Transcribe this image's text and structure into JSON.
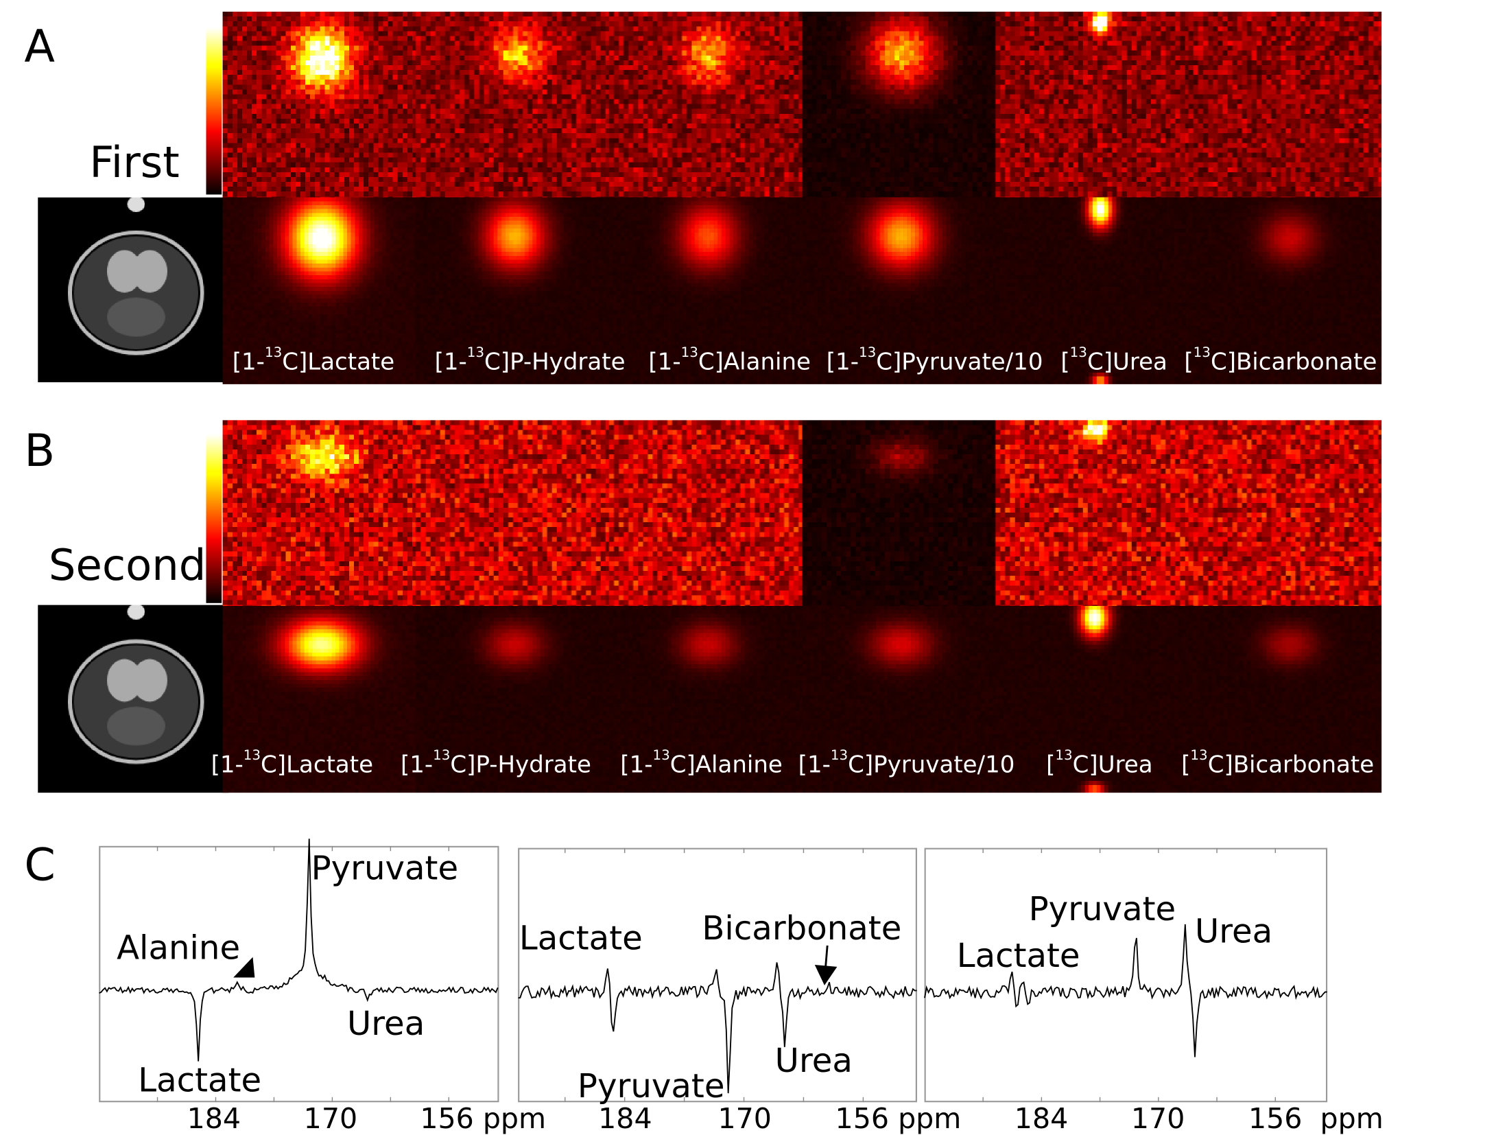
{
  "panels": {
    "A": {
      "letter": "A",
      "row_label": "First",
      "labels": [
        {
          "pre": "[1-",
          "sup": "13",
          "post": "C]Lactate"
        },
        {
          "pre": "[1-",
          "sup": "13",
          "post": "C]P-Hydrate"
        },
        {
          "pre": "[1-",
          "sup": "13",
          "post": "C]Alanine"
        },
        {
          "pre": "[1-",
          "sup": "13",
          "post": "C]Pyruvate/10"
        },
        {
          "pre": "[",
          "sup": "13",
          "post": "C]Urea"
        },
        {
          "pre": "[",
          "sup": "13",
          "post": "C]Bicarbonate"
        }
      ]
    },
    "B": {
      "letter": "B",
      "row_label": "Second",
      "labels": [
        {
          "pre": "[1-",
          "sup": "13",
          "post": "C]Lactate"
        },
        {
          "pre": "[1-",
          "sup": "13",
          "post": "C]P-Hydrate"
        },
        {
          "pre": "[1-",
          "sup": "13",
          "post": "C]Alanine"
        },
        {
          "pre": "[1-",
          "sup": "13",
          "post": "C]Pyruvate/10"
        },
        {
          "pre": "[",
          "sup": "13",
          "post": "C]Urea"
        },
        {
          "pre": "[",
          "sup": "13",
          "post": "C]Bicarbonate"
        }
      ]
    },
    "C": {
      "letter": "C"
    }
  },
  "colors": {
    "colormap": "hot",
    "line": "#000000",
    "frame": "#999999"
  },
  "chart_data": [
    {
      "type": "line",
      "title": "",
      "xlabel": "ppm",
      "xlim": [
        198,
        150
      ],
      "xticks": [
        184,
        170,
        156
      ],
      "xtick_labels": [
        "184",
        "170",
        "156 ppm"
      ],
      "peaks": [
        {
          "name": "Lactate",
          "ppm": 186.1,
          "amp": -75
        },
        {
          "name": "Alanine",
          "ppm": 181.5,
          "amp": 10
        },
        {
          "name": "Pyruvate",
          "ppm": 172.8,
          "amp": 140
        },
        {
          "name": "Urea",
          "ppm": 165.8,
          "amp": -12
        }
      ],
      "annotations": [
        "Pyruvate",
        "Alanine",
        "Urea",
        "Lactate"
      ]
    },
    {
      "type": "line",
      "title": "",
      "xlabel": "ppm",
      "xlim": [
        196.5,
        149.7
      ],
      "xticks": [
        184,
        170,
        156
      ],
      "xtick_labels": [
        "184",
        "170",
        "156 ppm"
      ],
      "peaks": [
        {
          "name": "Lactate",
          "ppm": 185.9,
          "amp": 35
        },
        {
          "name": "Lactate",
          "ppm": 185.4,
          "amp": -55
        },
        {
          "name": "Pyruvate",
          "ppm": 173.3,
          "amp": 30
        },
        {
          "name": "Pyruvate",
          "ppm": 171.8,
          "amp": -105
        },
        {
          "name": "Bicarbonate",
          "ppm": 166.1,
          "amp": 35
        },
        {
          "name": "Urea",
          "ppm": 165.2,
          "amp": -55
        },
        {
          "name": "Bicarbonate",
          "ppm": 160.2,
          "amp": 10
        }
      ],
      "annotations": [
        "Lactate",
        "Bicarbonate",
        "Urea",
        "Pyruvate"
      ]
    },
    {
      "type": "line",
      "title": "",
      "xlabel": "ppm",
      "xlim": [
        198,
        149.8
      ],
      "xticks": [
        184,
        170,
        156
      ],
      "xtick_labels": [
        "184",
        "170",
        "156  ppm"
      ],
      "peaks": [
        {
          "name": "Lactate",
          "ppm": 187.6,
          "amp": 25
        },
        {
          "name": "Lactate",
          "ppm": 187.0,
          "amp": -25
        },
        {
          "name": "Lactate",
          "ppm": 186.2,
          "amp": 20
        },
        {
          "name": "Lactate",
          "ppm": 185.6,
          "amp": -20
        },
        {
          "name": "Pyruvate",
          "ppm": 172.7,
          "amp": 60
        },
        {
          "name": "Urea",
          "ppm": 166.8,
          "amp": 75
        },
        {
          "name": "Urea",
          "ppm": 165.6,
          "amp": -65
        }
      ],
      "annotations": [
        "Pyruvate",
        "Urea",
        "Lactate"
      ]
    }
  ]
}
